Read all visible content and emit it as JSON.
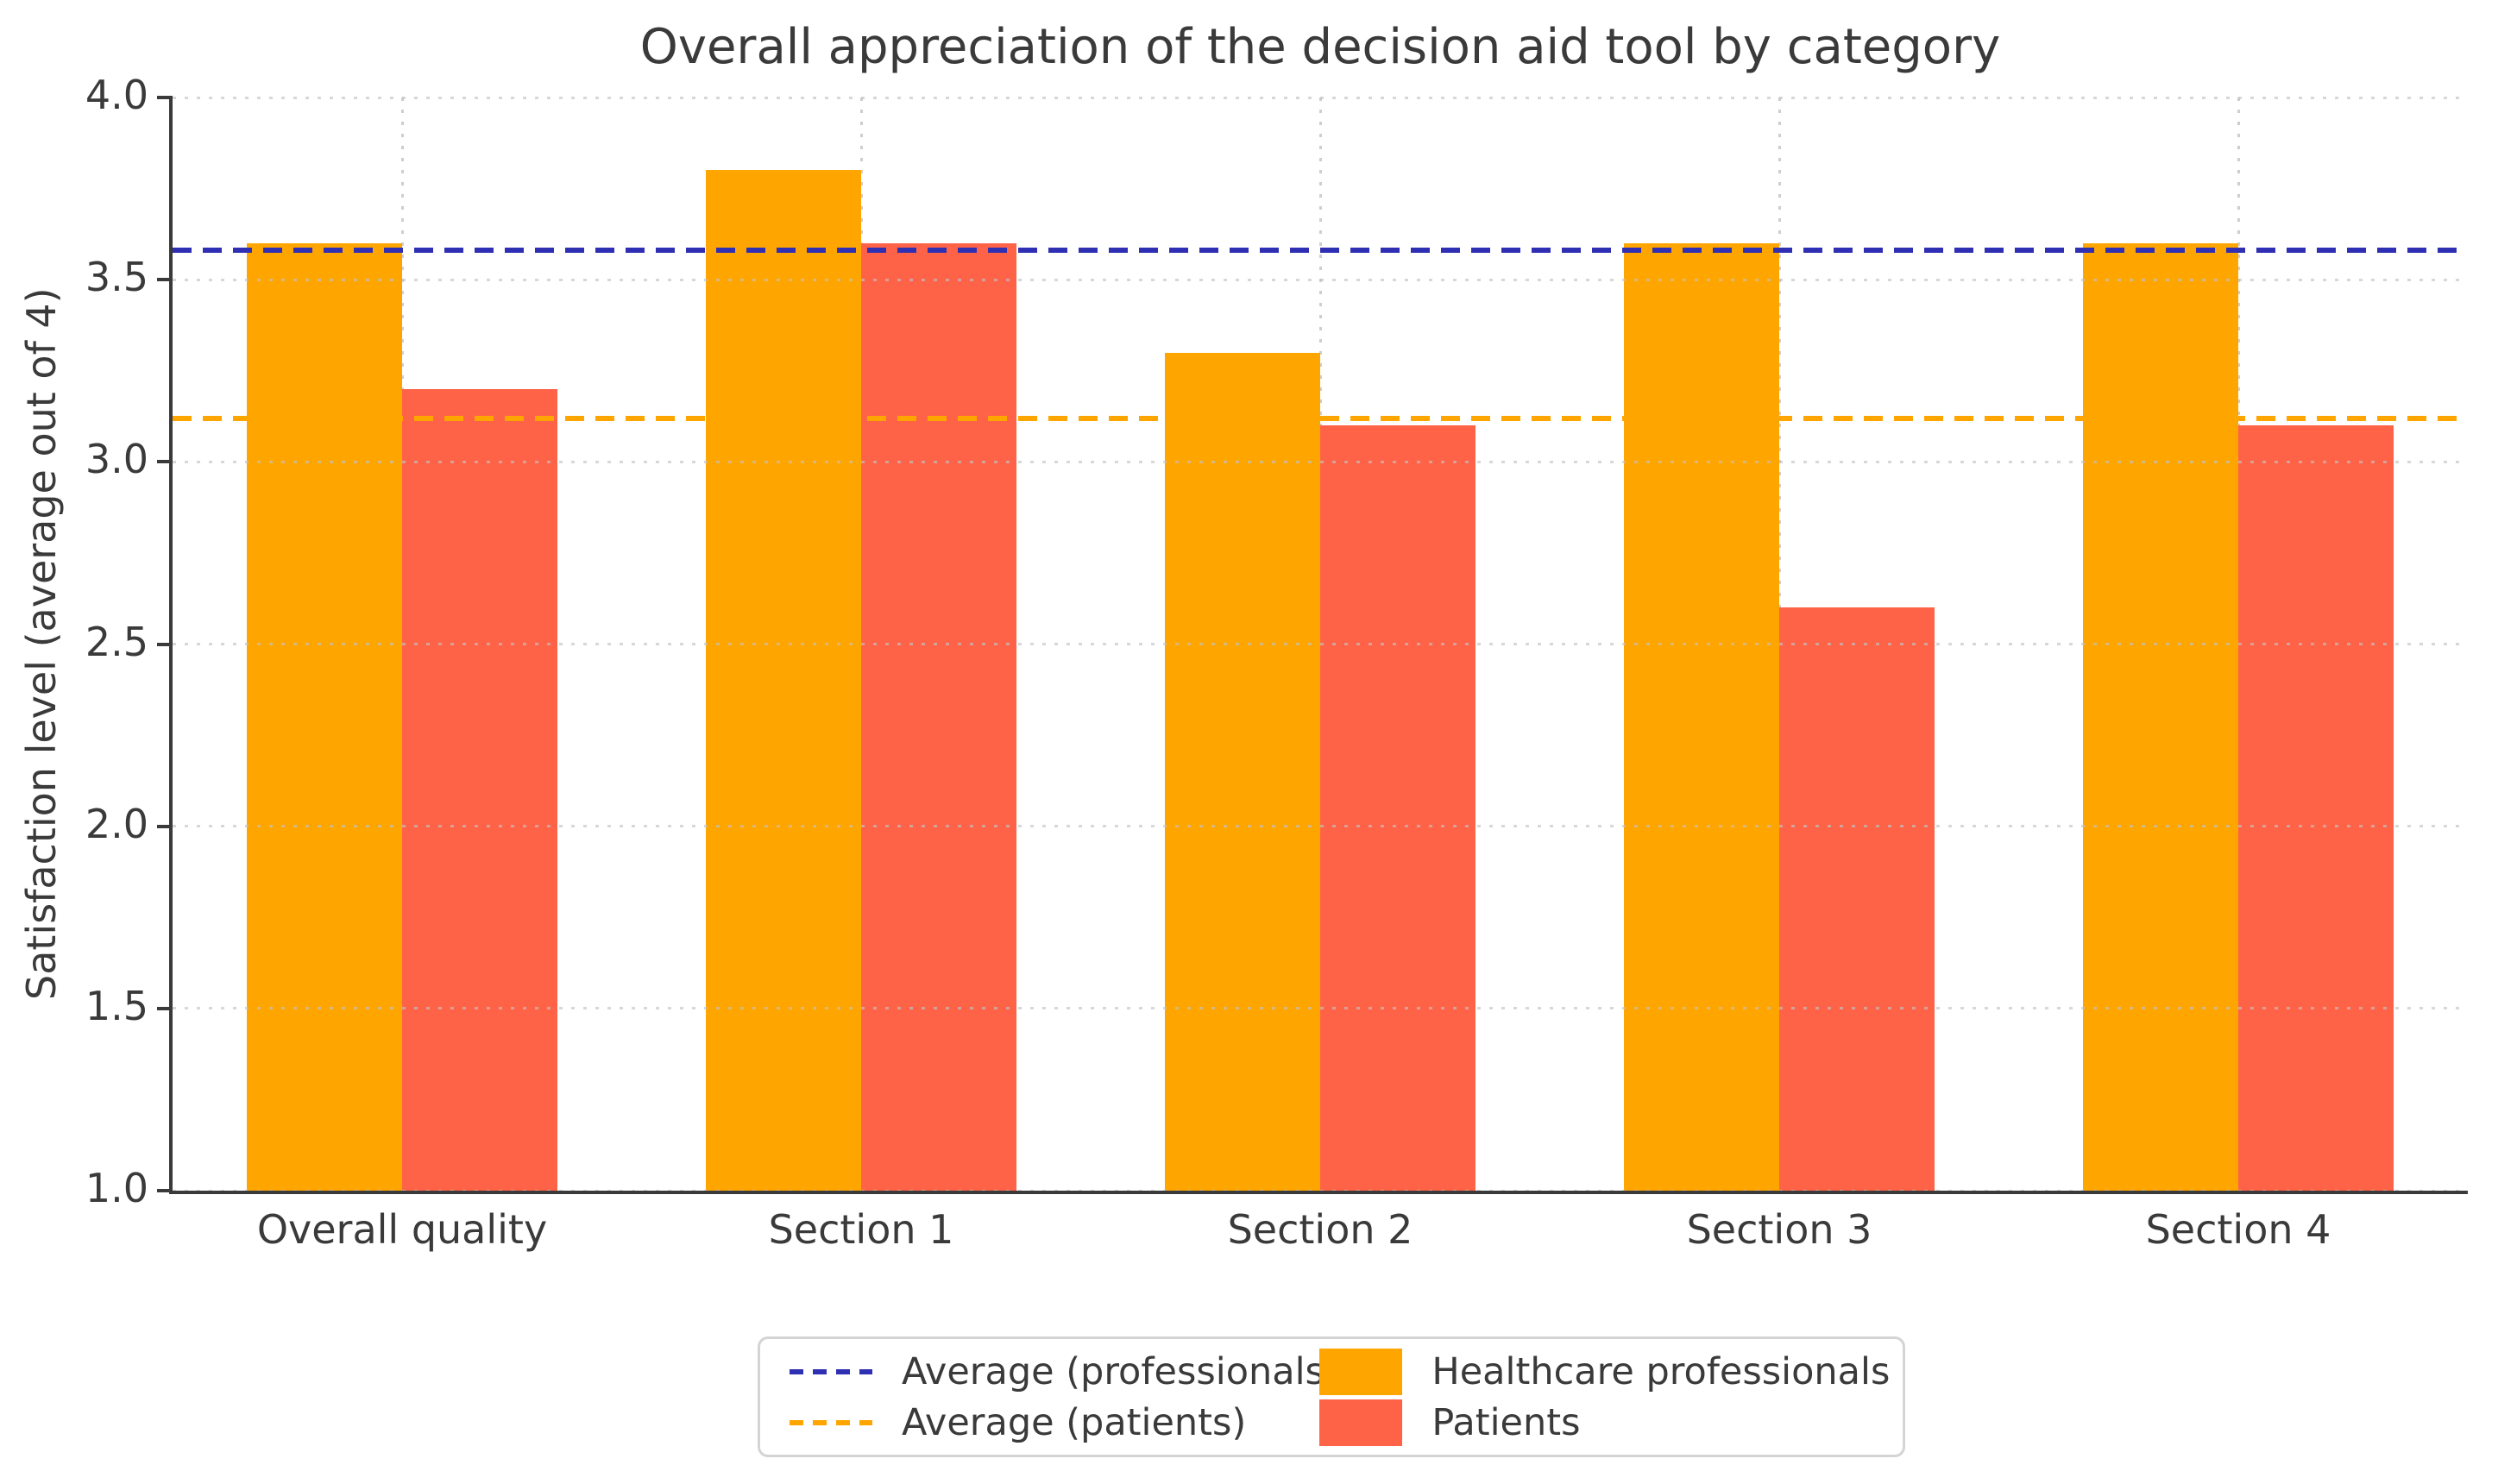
{
  "chart_data": {
    "type": "bar",
    "title": "Overall appreciation of the decision aid tool by category",
    "ylabel": "Satisfaction level (average out of 4)",
    "xlabel": "",
    "categories": [
      "Overall quality",
      "Section 1",
      "Section 2",
      "Section 3",
      "Section 4"
    ],
    "series": [
      {
        "name": "Healthcare professionals",
        "color": "#FFA500",
        "values": [
          3.6,
          3.8,
          3.3,
          3.6,
          3.6
        ]
      },
      {
        "name": "Patients",
        "color": "#FF6347",
        "values": [
          3.2,
          3.6,
          3.1,
          2.6,
          3.1
        ]
      }
    ],
    "reference_lines": [
      {
        "name": "Average (professionals)",
        "value": 3.58,
        "color": "#2F2FB3",
        "style": "dashed"
      },
      {
        "name": "Average (patients)",
        "value": 3.12,
        "color": "#FFA500",
        "style": "dashed"
      }
    ],
    "ylim": [
      1.0,
      4.0
    ],
    "yticks": [
      1.0,
      1.5,
      2.0,
      2.5,
      3.0,
      3.5,
      4.0
    ],
    "grid": true,
    "grid_style": "dotted",
    "legend_position": "bottom-center",
    "colors": {
      "text": "#3a3a3a",
      "spine": "#3a3a3a",
      "grid": "#c2c2c2",
      "background": "#ffffff"
    }
  }
}
